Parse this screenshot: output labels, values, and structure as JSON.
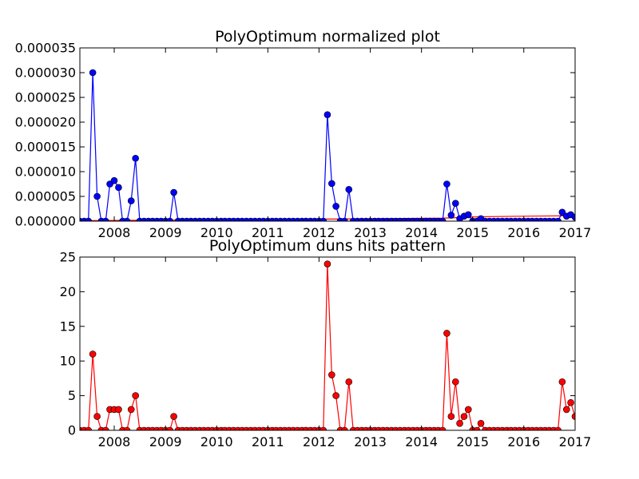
{
  "chart_data": [
    {
      "type": "line",
      "title": "PolyOptimum normalized plot",
      "xlabel": "",
      "ylabel": "",
      "x_axis": "date",
      "xlim": [
        "2007-05-01",
        "2017-01-01"
      ],
      "ylim": [
        0,
        3.5e-05
      ],
      "yticks": [
        0,
        5e-06,
        1e-05,
        1.5e-05,
        2e-05,
        2.5e-05,
        3e-05,
        3.5e-05
      ],
      "ytick_labels": [
        "0.000000",
        "0.000005",
        "0.000010",
        "0.000015",
        "0.000020",
        "0.000025",
        "0.000030",
        "0.000035"
      ],
      "xtick_labels": [
        "2008",
        "2009",
        "2010",
        "2011",
        "2012",
        "2013",
        "2014",
        "2015",
        "2016",
        "2017"
      ],
      "grid": false,
      "series": [
        {
          "color": "#0000ff",
          "marker": "circle",
          "points": [
            [
              "2007-05-01",
              0
            ],
            [
              "2007-06-01",
              0
            ],
            [
              "2007-07-01",
              0
            ],
            [
              "2007-08-01",
              3e-05
            ],
            [
              "2007-09-01",
              5e-06
            ],
            [
              "2007-10-01",
              0
            ],
            [
              "2007-11-01",
              0
            ],
            [
              "2007-12-01",
              7.5e-06
            ],
            [
              "2008-01-01",
              8.2e-06
            ],
            [
              "2008-02-01",
              6.8e-06
            ],
            [
              "2008-03-01",
              0
            ],
            [
              "2008-04-01",
              0
            ],
            [
              "2008-05-01",
              4.1e-06
            ],
            [
              "2008-06-01",
              1.27e-05
            ],
            [
              "2008-07-01",
              0
            ],
            [
              "2008-08-01",
              0
            ],
            [
              "2008-09-01",
              0
            ],
            [
              "2008-10-01",
              0
            ],
            [
              "2008-11-01",
              0
            ],
            [
              "2008-12-01",
              0
            ],
            [
              "2009-01-01",
              0
            ],
            [
              "2009-02-01",
              0
            ],
            [
              "2009-03-01",
              5.8e-06
            ],
            [
              "2009-04-01",
              0
            ],
            [
              "2009-05-01",
              0
            ],
            [
              "2009-06-01",
              0
            ],
            [
              "2009-07-01",
              0
            ],
            [
              "2009-08-01",
              0
            ],
            [
              "2009-09-01",
              0
            ],
            [
              "2009-10-01",
              0
            ],
            [
              "2009-11-01",
              0
            ],
            [
              "2009-12-01",
              0
            ],
            [
              "2010-01-01",
              0
            ],
            [
              "2010-02-01",
              0
            ],
            [
              "2010-03-01",
              0
            ],
            [
              "2010-04-01",
              0
            ],
            [
              "2010-05-01",
              0
            ],
            [
              "2010-06-01",
              0
            ],
            [
              "2010-07-01",
              0
            ],
            [
              "2010-08-01",
              0
            ],
            [
              "2010-09-01",
              0
            ],
            [
              "2010-10-01",
              0
            ],
            [
              "2010-11-01",
              0
            ],
            [
              "2010-12-01",
              0
            ],
            [
              "2011-01-01",
              0
            ],
            [
              "2011-02-01",
              0
            ],
            [
              "2011-03-01",
              0
            ],
            [
              "2011-04-01",
              0
            ],
            [
              "2011-05-01",
              0
            ],
            [
              "2011-06-01",
              0
            ],
            [
              "2011-07-01",
              0
            ],
            [
              "2011-08-01",
              0
            ],
            [
              "2011-09-01",
              0
            ],
            [
              "2011-10-01",
              0
            ],
            [
              "2011-11-01",
              0
            ],
            [
              "2011-12-01",
              0
            ],
            [
              "2012-01-01",
              0
            ],
            [
              "2012-02-01",
              0
            ],
            [
              "2012-03-01",
              2.15e-05
            ],
            [
              "2012-04-01",
              7.6e-06
            ],
            [
              "2012-05-01",
              3e-06
            ],
            [
              "2012-06-01",
              0
            ],
            [
              "2012-07-01",
              0
            ],
            [
              "2012-08-01",
              6.4e-06
            ],
            [
              "2012-09-01",
              0
            ],
            [
              "2012-10-01",
              0
            ],
            [
              "2012-11-01",
              0
            ],
            [
              "2012-12-01",
              0
            ],
            [
              "2013-01-01",
              0
            ],
            [
              "2013-02-01",
              0
            ],
            [
              "2013-03-01",
              0
            ],
            [
              "2013-04-01",
              0
            ],
            [
              "2013-05-01",
              0
            ],
            [
              "2013-06-01",
              0
            ],
            [
              "2013-07-01",
              0
            ],
            [
              "2013-08-01",
              0
            ],
            [
              "2013-09-01",
              0
            ],
            [
              "2013-10-01",
              0
            ],
            [
              "2013-11-01",
              0
            ],
            [
              "2013-12-01",
              0
            ],
            [
              "2014-01-01",
              0
            ],
            [
              "2014-02-01",
              0
            ],
            [
              "2014-03-01",
              0
            ],
            [
              "2014-04-01",
              0
            ],
            [
              "2014-05-01",
              0
            ],
            [
              "2014-06-01",
              0
            ],
            [
              "2014-07-01",
              7.5e-06
            ],
            [
              "2014-08-01",
              1.2e-06
            ],
            [
              "2014-09-01",
              3.6e-06
            ],
            [
              "2014-10-01",
              5e-07
            ],
            [
              "2014-11-01",
              1e-06
            ],
            [
              "2014-12-01",
              1.3e-06
            ],
            [
              "2015-01-01",
              0
            ],
            [
              "2015-02-01",
              0
            ],
            [
              "2015-03-01",
              5e-07
            ],
            [
              "2015-04-01",
              0
            ],
            [
              "2015-05-01",
              0
            ],
            [
              "2015-06-01",
              0
            ],
            [
              "2015-07-01",
              0
            ],
            [
              "2015-08-01",
              0
            ],
            [
              "2015-09-01",
              0
            ],
            [
              "2015-10-01",
              0
            ],
            [
              "2015-11-01",
              0
            ],
            [
              "2015-12-01",
              0
            ],
            [
              "2016-01-01",
              0
            ],
            [
              "2016-02-01",
              0
            ],
            [
              "2016-03-01",
              0
            ],
            [
              "2016-04-01",
              0
            ],
            [
              "2016-05-01",
              0
            ],
            [
              "2016-06-01",
              0
            ],
            [
              "2016-07-01",
              0
            ],
            [
              "2016-08-01",
              0
            ],
            [
              "2016-09-01",
              0
            ],
            [
              "2016-10-01",
              1.8e-06
            ],
            [
              "2016-11-01",
              1e-06
            ],
            [
              "2016-12-01",
              1.3e-06
            ],
            [
              "2017-01-01",
              8e-07
            ]
          ]
        },
        {
          "color": "#ff0000",
          "marker": "none",
          "points": [
            [
              "2007-05-01",
              1e-07
            ],
            [
              "2012-01-01",
              4e-07
            ],
            [
              "2014-06-01",
              6e-07
            ],
            [
              "2015-03-01",
              9e-07
            ],
            [
              "2017-01-01",
              1.1e-06
            ]
          ]
        }
      ]
    },
    {
      "type": "line",
      "title": "PolyOptimum duns hits pattern",
      "xlabel": "",
      "ylabel": "",
      "x_axis": "date",
      "xlim": [
        "2007-05-01",
        "2017-01-01"
      ],
      "ylim": [
        0,
        25
      ],
      "yticks": [
        0,
        5,
        10,
        15,
        20,
        25
      ],
      "ytick_labels": [
        "0",
        "5",
        "10",
        "15",
        "20",
        "25"
      ],
      "xtick_labels": [
        "2008",
        "2009",
        "2010",
        "2011",
        "2012",
        "2013",
        "2014",
        "2015",
        "2016",
        "2017"
      ],
      "grid": false,
      "series": [
        {
          "color": "#ff0000",
          "marker": "circle",
          "points": [
            [
              "2007-05-01",
              0
            ],
            [
              "2007-06-01",
              0
            ],
            [
              "2007-07-01",
              0
            ],
            [
              "2007-08-01",
              11
            ],
            [
              "2007-09-01",
              2
            ],
            [
              "2007-10-01",
              0
            ],
            [
              "2007-11-01",
              0
            ],
            [
              "2007-12-01",
              3
            ],
            [
              "2008-01-01",
              3
            ],
            [
              "2008-02-01",
              3
            ],
            [
              "2008-03-01",
              0
            ],
            [
              "2008-04-01",
              0
            ],
            [
              "2008-05-01",
              3
            ],
            [
              "2008-06-01",
              5
            ],
            [
              "2008-07-01",
              0
            ],
            [
              "2008-08-01",
              0
            ],
            [
              "2008-09-01",
              0
            ],
            [
              "2008-10-01",
              0
            ],
            [
              "2008-11-01",
              0
            ],
            [
              "2008-12-01",
              0
            ],
            [
              "2009-01-01",
              0
            ],
            [
              "2009-02-01",
              0
            ],
            [
              "2009-03-01",
              2
            ],
            [
              "2009-04-01",
              0
            ],
            [
              "2009-05-01",
              0
            ],
            [
              "2009-06-01",
              0
            ],
            [
              "2009-07-01",
              0
            ],
            [
              "2009-08-01",
              0
            ],
            [
              "2009-09-01",
              0
            ],
            [
              "2009-10-01",
              0
            ],
            [
              "2009-11-01",
              0
            ],
            [
              "2009-12-01",
              0
            ],
            [
              "2010-01-01",
              0
            ],
            [
              "2010-02-01",
              0
            ],
            [
              "2010-03-01",
              0
            ],
            [
              "2010-04-01",
              0
            ],
            [
              "2010-05-01",
              0
            ],
            [
              "2010-06-01",
              0
            ],
            [
              "2010-07-01",
              0
            ],
            [
              "2010-08-01",
              0
            ],
            [
              "2010-09-01",
              0
            ],
            [
              "2010-10-01",
              0
            ],
            [
              "2010-11-01",
              0
            ],
            [
              "2010-12-01",
              0
            ],
            [
              "2011-01-01",
              0
            ],
            [
              "2011-02-01",
              0
            ],
            [
              "2011-03-01",
              0
            ],
            [
              "2011-04-01",
              0
            ],
            [
              "2011-05-01",
              0
            ],
            [
              "2011-06-01",
              0
            ],
            [
              "2011-07-01",
              0
            ],
            [
              "2011-08-01",
              0
            ],
            [
              "2011-09-01",
              0
            ],
            [
              "2011-10-01",
              0
            ],
            [
              "2011-11-01",
              0
            ],
            [
              "2011-12-01",
              0
            ],
            [
              "2012-01-01",
              0
            ],
            [
              "2012-02-01",
              0
            ],
            [
              "2012-03-01",
              24
            ],
            [
              "2012-04-01",
              8
            ],
            [
              "2012-05-01",
              5
            ],
            [
              "2012-06-01",
              0
            ],
            [
              "2012-07-01",
              0
            ],
            [
              "2012-08-01",
              7
            ],
            [
              "2012-09-01",
              0
            ],
            [
              "2012-10-01",
              0
            ],
            [
              "2012-11-01",
              0
            ],
            [
              "2012-12-01",
              0
            ],
            [
              "2013-01-01",
              0
            ],
            [
              "2013-02-01",
              0
            ],
            [
              "2013-03-01",
              0
            ],
            [
              "2013-04-01",
              0
            ],
            [
              "2013-05-01",
              0
            ],
            [
              "2013-06-01",
              0
            ],
            [
              "2013-07-01",
              0
            ],
            [
              "2013-08-01",
              0
            ],
            [
              "2013-09-01",
              0
            ],
            [
              "2013-10-01",
              0
            ],
            [
              "2013-11-01",
              0
            ],
            [
              "2013-12-01",
              0
            ],
            [
              "2014-01-01",
              0
            ],
            [
              "2014-02-01",
              0
            ],
            [
              "2014-03-01",
              0
            ],
            [
              "2014-04-01",
              0
            ],
            [
              "2014-05-01",
              0
            ],
            [
              "2014-06-01",
              0
            ],
            [
              "2014-07-01",
              14
            ],
            [
              "2014-08-01",
              2
            ],
            [
              "2014-09-01",
              7
            ],
            [
              "2014-10-01",
              1
            ],
            [
              "2014-11-01",
              2
            ],
            [
              "2014-12-01",
              3
            ],
            [
              "2015-01-01",
              0
            ],
            [
              "2015-02-01",
              0
            ],
            [
              "2015-03-01",
              1
            ],
            [
              "2015-04-01",
              0
            ],
            [
              "2015-05-01",
              0
            ],
            [
              "2015-06-01",
              0
            ],
            [
              "2015-07-01",
              0
            ],
            [
              "2015-08-01",
              0
            ],
            [
              "2015-09-01",
              0
            ],
            [
              "2015-10-01",
              0
            ],
            [
              "2015-11-01",
              0
            ],
            [
              "2015-12-01",
              0
            ],
            [
              "2016-01-01",
              0
            ],
            [
              "2016-02-01",
              0
            ],
            [
              "2016-03-01",
              0
            ],
            [
              "2016-04-01",
              0
            ],
            [
              "2016-05-01",
              0
            ],
            [
              "2016-06-01",
              0
            ],
            [
              "2016-07-01",
              0
            ],
            [
              "2016-08-01",
              0
            ],
            [
              "2016-09-01",
              0
            ],
            [
              "2016-10-01",
              7
            ],
            [
              "2016-11-01",
              3
            ],
            [
              "2016-12-01",
              4
            ],
            [
              "2017-01-01",
              2
            ]
          ]
        }
      ]
    }
  ]
}
